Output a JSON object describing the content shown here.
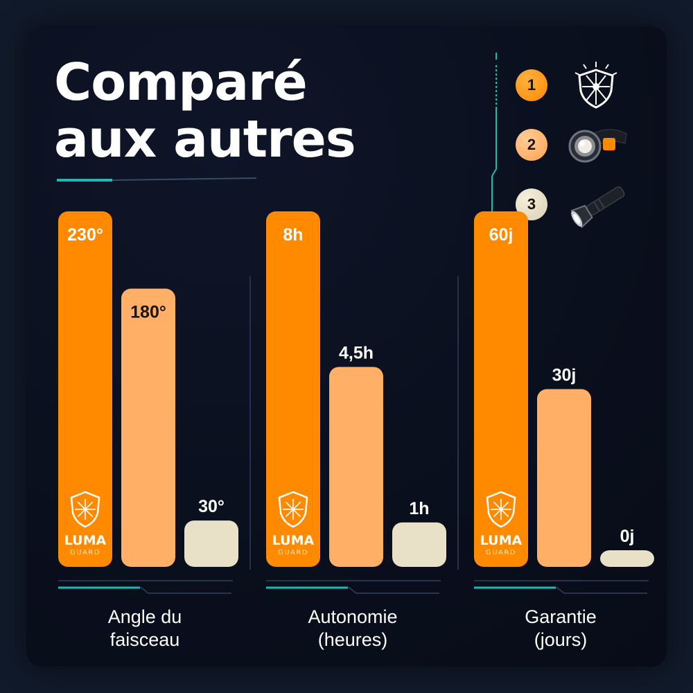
{
  "header": {
    "title_line1": "Comparé",
    "title_line2": "aux autres"
  },
  "legend": [
    {
      "number": "1",
      "color": "#ff8a00",
      "icon": "shield-sun-icon"
    },
    {
      "number": "2",
      "color": "#ffb066",
      "icon": "headlamp-icon"
    },
    {
      "number": "3",
      "color": "#e9e0c8",
      "icon": "flashlight-icon"
    }
  ],
  "brand": {
    "name": "LUMA",
    "sub": "GUARD"
  },
  "colors": {
    "primary_orange": "#ff8a00",
    "light_orange": "#ffb066",
    "cream": "#e9e0c8",
    "teal_accent": "#1fb8b3"
  },
  "chart_data": {
    "type": "bar",
    "series_colors": [
      "#ff8a00",
      "#ffb066",
      "#e9e0c8"
    ],
    "groups": [
      {
        "label_line1": "Angle du",
        "label_line2": "faisceau",
        "values": [
          230,
          180,
          30
        ],
        "labels": [
          "230°",
          "180°",
          "30°"
        ],
        "ymax": 230
      },
      {
        "label_line1": "Autonomie",
        "label_line2": "(heures)",
        "values": [
          8,
          4.5,
          1
        ],
        "labels": [
          "8h",
          "4,5h",
          "1h"
        ],
        "ymax": 8
      },
      {
        "label_line1": "Garantie",
        "label_line2": "(jours)",
        "values": [
          60,
          30,
          0
        ],
        "labels": [
          "60j",
          "30j",
          "0j"
        ],
        "ymax": 60
      }
    ]
  }
}
